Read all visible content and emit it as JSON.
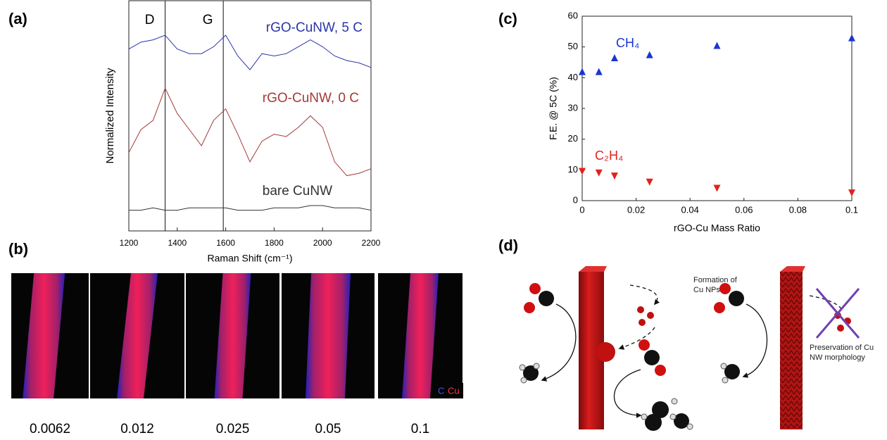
{
  "panel_labels": [
    "(a)",
    "(b)",
    "(c)",
    "(d)"
  ],
  "chart_data": [
    {
      "type": "line",
      "xlabel": "Raman Shift (cm⁻¹)",
      "ylabel": "Normalized Intensity",
      "x": [
        1200,
        1250,
        1300,
        1350,
        1400,
        1450,
        1500,
        1550,
        1600,
        1650,
        1700,
        1750,
        1800,
        1850,
        1900,
        1950,
        2000,
        2050,
        2100,
        2150,
        2200
      ],
      "xlim": [
        1200,
        2200
      ],
      "xticks": [
        1200,
        1400,
        1600,
        1800,
        2000,
        2200
      ],
      "ylim": [
        0,
        100
      ],
      "vlines": [
        1350,
        1590
      ],
      "annotations": [
        "D",
        "G"
      ],
      "series": [
        {
          "name": "rGO-CuNW, 5 C",
          "color": "#2a35a8",
          "values": [
            79,
            82,
            83,
            85,
            79,
            77,
            77,
            80,
            85,
            76,
            70,
            77,
            76,
            77,
            80,
            83,
            80,
            76,
            74,
            73,
            71
          ]
        },
        {
          "name": "rGO-CuNW, 0 C",
          "color": "#a33a36",
          "values": [
            34,
            44,
            48,
            62,
            51,
            44,
            37,
            48,
            53,
            42,
            30,
            39,
            42,
            41,
            45,
            50,
            45,
            30,
            24,
            25,
            27
          ]
        },
        {
          "name": "bare CuNW",
          "color": "#333333",
          "values": [
            9,
            9,
            10,
            9,
            9,
            10,
            10,
            10,
            10,
            9,
            9,
            9,
            10,
            10,
            10,
            11,
            11,
            10,
            10,
            10,
            9
          ]
        }
      ]
    },
    {
      "type": "scatter",
      "xlabel": "rGO-Cu Mass Ratio",
      "ylabel": "F.E. @ 5C (%)",
      "x": [
        0,
        0.0062,
        0.012,
        0.025,
        0.05,
        0.1
      ],
      "xlim": [
        0,
        0.1
      ],
      "xticks": [
        0,
        0.02,
        0.04,
        0.06,
        0.08,
        0.1
      ],
      "ylim": [
        0,
        60
      ],
      "yticks": [
        0,
        10,
        20,
        30,
        40,
        50,
        60
      ],
      "series": [
        {
          "name": "CH₄",
          "color": "#1836d0",
          "marker": "triangle-up",
          "values": [
            42,
            42,
            46.5,
            47.5,
            50.5,
            53
          ]
        },
        {
          "name": "C₂H₄",
          "color": "#e0231c",
          "marker": "triangle-down",
          "values": [
            9.5,
            9,
            8,
            6,
            4,
            2.5
          ]
        }
      ]
    }
  ],
  "panel_b": {
    "labels": [
      "0.0062",
      "0.012",
      "0.025",
      "0.05",
      "0.1"
    ],
    "legend": [
      "C",
      "Cu"
    ]
  },
  "panel_d": {
    "left_note": [
      "Formation of",
      "Cu NPs"
    ],
    "right_note": [
      "Preservation of Cu",
      "NW morphology"
    ]
  }
}
